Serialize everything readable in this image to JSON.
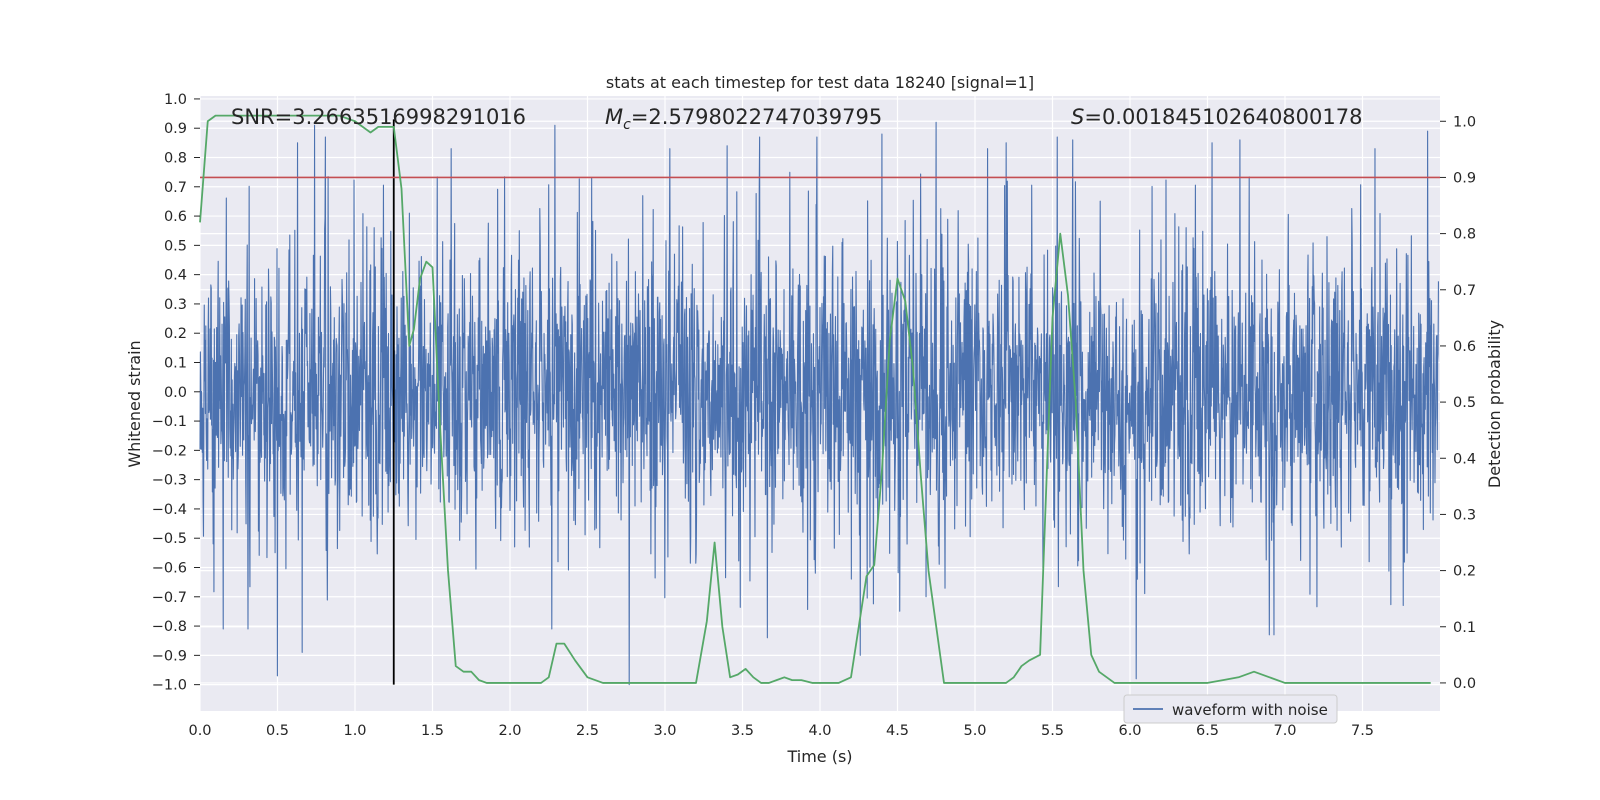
{
  "chart_data": {
    "type": "line",
    "title": "stats at each timestep for test data 18240 [signal=1]",
    "xlabel": "Time (s)",
    "ylabel_left": "Whitened strain",
    "ylabel_right": "Detection probability",
    "xlim": [
      0.0,
      8.0
    ],
    "ylim_left": [
      -1.09,
      1.01
    ],
    "ylim_right": [
      -0.05,
      1.045
    ],
    "x_ticks": [
      "0.0",
      "0.5",
      "1.0",
      "1.5",
      "2.0",
      "2.5",
      "3.0",
      "3.5",
      "4.0",
      "4.5",
      "5.0",
      "5.5",
      "6.0",
      "6.5",
      "7.0",
      "7.5"
    ],
    "x_tick_values": [
      0.0,
      0.5,
      1.0,
      1.5,
      2.0,
      2.5,
      3.0,
      3.5,
      4.0,
      4.5,
      5.0,
      5.5,
      6.0,
      6.5,
      7.0,
      7.5
    ],
    "y_left_ticks": [
      "1.0",
      "0.9",
      "0.8",
      "0.7",
      "0.6",
      "0.5",
      "0.4",
      "0.3",
      "0.2",
      "0.1",
      "0.0",
      "−0.1",
      "−0.2",
      "−0.3",
      "−0.4",
      "−0.5",
      "−0.6",
      "−0.7",
      "−0.8",
      "−0.9",
      "−1.0"
    ],
    "y_left_tick_values": [
      1.0,
      0.9,
      0.8,
      0.7,
      0.6,
      0.5,
      0.4,
      0.3,
      0.2,
      0.1,
      0.0,
      -0.1,
      -0.2,
      -0.3,
      -0.4,
      -0.5,
      -0.6,
      -0.7,
      -0.8,
      -0.9,
      -1.0
    ],
    "y_right_ticks": [
      "1.0",
      "0.9",
      "0.8",
      "0.7",
      "0.6",
      "0.5",
      "0.4",
      "0.3",
      "0.2",
      "0.1",
      "0.0"
    ],
    "y_right_tick_values": [
      1.0,
      0.9,
      0.8,
      0.7,
      0.6,
      0.5,
      0.4,
      0.3,
      0.2,
      0.1,
      0.0
    ],
    "annotations": {
      "snr": "SNR=3.2663516998291016",
      "mc_symbol": "M",
      "mc_sub": "c",
      "mc_value": "=2.5798022747039795",
      "s_symbol": "S",
      "s_value": "=0.001845102640800178"
    },
    "threshold": 0.9,
    "event_time": 1.25,
    "legend": {
      "label": "waveform with noise",
      "placement": "lower-right"
    },
    "waveform": {
      "name": "waveform with noise",
      "t_start": 0.0,
      "t_end": 7.99,
      "typical_amplitude": 0.42,
      "spikes": [
        {
          "t": 0.5,
          "v": -0.97
        },
        {
          "t": 0.63,
          "v": 0.85
        },
        {
          "t": 0.66,
          "v": -0.89
        },
        {
          "t": 0.74,
          "v": 0.91
        },
        {
          "t": 0.81,
          "v": 0.87
        },
        {
          "t": 0.15,
          "v": -0.81
        },
        {
          "t": 0.31,
          "v": -0.81
        },
        {
          "t": 1.25,
          "v": 0.65
        },
        {
          "t": 1.62,
          "v": 0.83
        },
        {
          "t": 2.27,
          "v": -0.81
        },
        {
          "t": 2.29,
          "v": 0.91
        },
        {
          "t": 2.77,
          "v": -1.0
        },
        {
          "t": 3.03,
          "v": 0.83
        },
        {
          "t": 3.4,
          "v": 0.84
        },
        {
          "t": 3.61,
          "v": 0.87
        },
        {
          "t": 3.66,
          "v": -0.84
        },
        {
          "t": 3.98,
          "v": 0.87
        },
        {
          "t": 4.26,
          "v": -0.9
        },
        {
          "t": 4.4,
          "v": 0.88
        },
        {
          "t": 4.75,
          "v": 0.92
        },
        {
          "t": 5.08,
          "v": 0.83
        },
        {
          "t": 5.2,
          "v": 0.85
        },
        {
          "t": 5.53,
          "v": 0.87
        },
        {
          "t": 5.63,
          "v": 0.86
        },
        {
          "t": 6.04,
          "v": -0.98
        },
        {
          "t": 6.53,
          "v": 0.85
        },
        {
          "t": 6.71,
          "v": 0.86
        },
        {
          "t": 6.9,
          "v": -0.83
        },
        {
          "t": 6.93,
          "v": -0.83
        },
        {
          "t": 7.58,
          "v": 0.83
        },
        {
          "t": 7.92,
          "v": 0.89
        },
        {
          "t": 1.35,
          "v": 0.61
        },
        {
          "t": 2.06,
          "v": 0.55
        }
      ]
    },
    "probability": {
      "name": "detection probability",
      "x": [
        0.0,
        0.05,
        0.1,
        0.15,
        0.3,
        0.5,
        0.7,
        0.9,
        1.0,
        1.05,
        1.1,
        1.15,
        1.2,
        1.25,
        1.3,
        1.35,
        1.38,
        1.42,
        1.46,
        1.5,
        1.55,
        1.6,
        1.65,
        1.7,
        1.75,
        1.8,
        1.85,
        1.9,
        2.0,
        2.1,
        2.2,
        2.25,
        2.3,
        2.35,
        2.42,
        2.5,
        2.6,
        2.7,
        2.8,
        2.9,
        3.0,
        3.1,
        3.2,
        3.27,
        3.32,
        3.37,
        3.42,
        3.47,
        3.52,
        3.57,
        3.62,
        3.67,
        3.72,
        3.77,
        3.82,
        3.88,
        3.95,
        4.05,
        4.12,
        4.2,
        4.25,
        4.3,
        4.35,
        4.4,
        4.45,
        4.5,
        4.55,
        4.6,
        4.65,
        4.7,
        4.75,
        4.8,
        4.85,
        4.9,
        5.0,
        5.1,
        5.2,
        5.25,
        5.3,
        5.35,
        5.42,
        5.5,
        5.55,
        5.6,
        5.65,
        5.7,
        5.75,
        5.8,
        5.85,
        5.9,
        6.0,
        6.5,
        6.6,
        6.7,
        6.8,
        6.9,
        7.0,
        7.5,
        7.94
      ],
      "y": [
        0.82,
        1.0,
        1.01,
        1.01,
        1.01,
        1.01,
        1.01,
        1.01,
        1.0,
        0.99,
        0.98,
        0.99,
        0.99,
        0.99,
        0.88,
        0.6,
        0.63,
        0.72,
        0.75,
        0.74,
        0.45,
        0.2,
        0.03,
        0.02,
        0.02,
        0.005,
        0.0,
        0.0,
        0.0,
        0.0,
        0.0,
        0.01,
        0.07,
        0.07,
        0.04,
        0.01,
        0.0,
        0.0,
        0.0,
        0.0,
        0.0,
        0.0,
        0.0,
        0.11,
        0.25,
        0.1,
        0.01,
        0.015,
        0.025,
        0.01,
        0.0,
        0.0,
        0.005,
        0.01,
        0.005,
        0.005,
        0.0,
        0.0,
        0.0,
        0.01,
        0.1,
        0.19,
        0.21,
        0.38,
        0.61,
        0.72,
        0.68,
        0.56,
        0.37,
        0.2,
        0.1,
        0.0,
        0.0,
        0.0,
        0.0,
        0.0,
        0.0,
        0.01,
        0.03,
        0.04,
        0.05,
        0.65,
        0.8,
        0.69,
        0.5,
        0.2,
        0.05,
        0.02,
        0.01,
        0.0,
        0.0,
        0.0,
        0.005,
        0.01,
        0.02,
        0.01,
        0.0,
        0.0,
        0.0
      ]
    },
    "colors": {
      "background": "#eaeaf2",
      "grid": "#ffffff",
      "waveform": "#4c72b0",
      "probability": "#55a868",
      "threshold": "#c44e52",
      "event_line": "#000000",
      "text": "#262626"
    }
  }
}
